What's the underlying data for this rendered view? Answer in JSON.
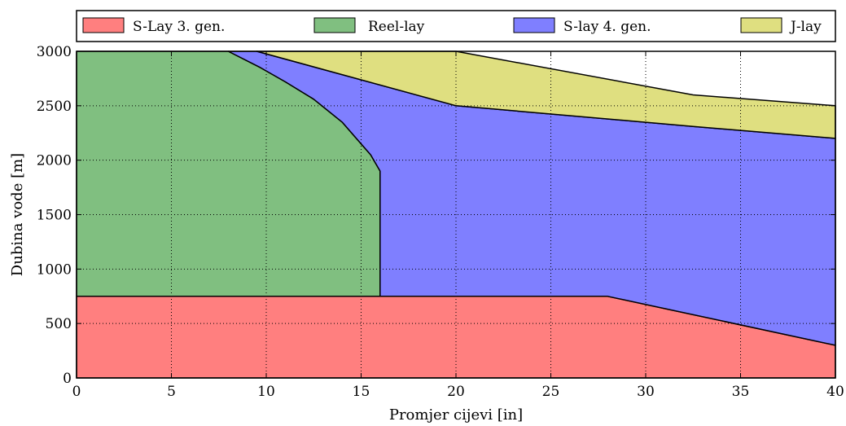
{
  "chart_data": {
    "type": "area",
    "title": "",
    "xlabel": "Promjer cijevi [in]",
    "ylabel": "Dubina vode [m]",
    "xlim": [
      0,
      40
    ],
    "ylim": [
      0,
      3000
    ],
    "xticks": [
      0,
      5,
      10,
      15,
      20,
      25,
      30,
      35,
      40
    ],
    "yticks": [
      0,
      500,
      1000,
      1500,
      2000,
      2500,
      3000
    ],
    "grid": true,
    "legend_position": "top",
    "series": [
      {
        "name": "S-Lay 3. gen.",
        "color": "#ff7f7f",
        "polygon": [
          [
            0,
            0
          ],
          [
            40,
            0
          ],
          [
            40,
            300
          ],
          [
            28,
            750
          ],
          [
            0,
            750
          ]
        ]
      },
      {
        "name": "Reel-lay",
        "color": "#80bf80",
        "polygon": [
          [
            0,
            750
          ],
          [
            16,
            750
          ],
          [
            16,
            1900
          ],
          [
            15.5,
            2050
          ],
          [
            15,
            2150
          ],
          [
            14,
            2350
          ],
          [
            12.5,
            2560
          ],
          [
            11,
            2720
          ],
          [
            9.7,
            2850
          ],
          [
            8,
            3000
          ],
          [
            0,
            3000
          ]
        ]
      },
      {
        "name": "S-lay 4. gen.",
        "color": "#7f7fff",
        "polygon": [
          [
            16,
            750
          ],
          [
            28,
            750
          ],
          [
            40,
            300
          ],
          [
            40,
            2200
          ],
          [
            32.5,
            2310
          ],
          [
            20,
            2500
          ],
          [
            9.5,
            3000
          ],
          [
            8,
            3000
          ],
          [
            9.7,
            2850
          ],
          [
            11,
            2720
          ],
          [
            12.5,
            2560
          ],
          [
            14,
            2350
          ],
          [
            15,
            2150
          ],
          [
            15.5,
            2050
          ],
          [
            16,
            1900
          ]
        ]
      },
      {
        "name": "J-lay",
        "color": "#dfdf80",
        "polygon": [
          [
            9.5,
            3000
          ],
          [
            20,
            3000
          ],
          [
            32.5,
            2600
          ],
          [
            40,
            2500
          ],
          [
            40,
            2200
          ],
          [
            32.5,
            2310
          ],
          [
            20,
            2500
          ]
        ]
      }
    ]
  }
}
